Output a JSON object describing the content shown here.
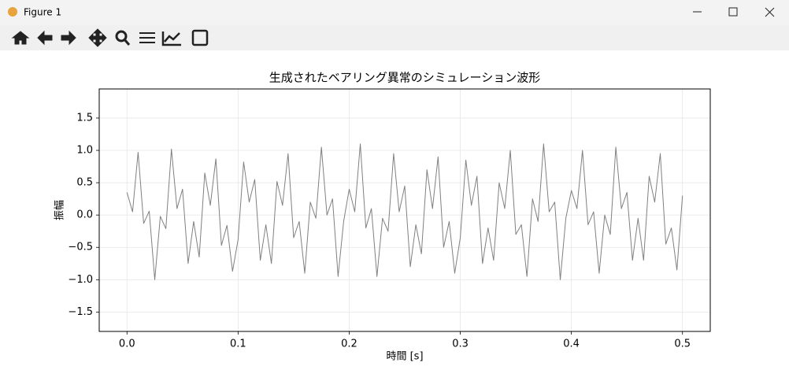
{
  "window": {
    "title": "Figure 1"
  },
  "chart_data": {
    "type": "line",
    "title": "生成されたベアリング異常のシミュレーション波形",
    "xlabel": "時間 [s]",
    "ylabel": "振幅",
    "color": "#808080",
    "grid": true,
    "xlim": [
      -0.025,
      0.525
    ],
    "ylim": [
      -1.8,
      1.95
    ],
    "xticks": [
      {
        "value": 0,
        "label": "0.0"
      },
      0.1,
      0.2,
      0.3,
      0.4,
      0.5
    ],
    "yticks": [
      {
        "value": -1.5,
        "label": "−1.5"
      },
      {
        "value": -1,
        "label": "−1.0"
      },
      {
        "value": -0.5,
        "label": "−0.5"
      },
      {
        "value": 0,
        "label": "0.0"
      },
      0.5,
      {
        "value": 1,
        "label": "1.0"
      },
      1.5
    ],
    "x": [
      0,
      0.005,
      0.01,
      0.015,
      0.02,
      0.025,
      0.03,
      0.035,
      0.04,
      0.045,
      0.05,
      0.055,
      0.06,
      0.065,
      0.07,
      0.075,
      0.08,
      0.085,
      0.09,
      0.095,
      0.1,
      0.105,
      0.11,
      0.115,
      0.12,
      0.125,
      0.13,
      0.135,
      0.14,
      0.145,
      0.15,
      0.155,
      0.16,
      0.165,
      0.17,
      0.175,
      0.18,
      0.185,
      0.19,
      0.195,
      0.2,
      0.205,
      0.21,
      0.215,
      0.22,
      0.225,
      0.23,
      0.235,
      0.24,
      0.245,
      0.25,
      0.255,
      0.26,
      0.265,
      0.27,
      0.275,
      0.28,
      0.285,
      0.29,
      0.295,
      0.3,
      0.305,
      0.31,
      0.315,
      0.32,
      0.325,
      0.33,
      0.335,
      0.34,
      0.345,
      0.35,
      0.355,
      0.36,
      0.365,
      0.37,
      0.375,
      0.38,
      0.385,
      0.39,
      0.395,
      0.4,
      0.405,
      0.41,
      0.415,
      0.42,
      0.425,
      0.43,
      0.435,
      0.44,
      0.445,
      0.45,
      0.455,
      0.46,
      0.465,
      0.47,
      0.475,
      0.48,
      0.485,
      0.49,
      0.495,
      0.5
    ],
    "values": [
      0.35,
      0.05,
      0.97,
      -0.13,
      0.06,
      -1.0,
      -0.02,
      -0.21,
      1.02,
      0.1,
      0.4,
      -0.75,
      -0.1,
      -0.65,
      0.65,
      0.15,
      0.87,
      -0.47,
      -0.16,
      -0.87,
      -0.38,
      0.82,
      0.2,
      0.55,
      -0.7,
      -0.15,
      -0.75,
      0.52,
      0.15,
      0.95,
      -0.35,
      -0.1,
      -0.9,
      0.2,
      -0.05,
      1.05,
      0.0,
      0.25,
      -0.95,
      -0.1,
      0.4,
      0.05,
      1.1,
      -0.2,
      0.1,
      -0.95,
      -0.05,
      -0.25,
      0.95,
      0.05,
      0.45,
      -0.8,
      -0.15,
      -0.6,
      0.7,
      0.1,
      0.9,
      -0.5,
      -0.1,
      -0.9,
      -0.35,
      0.85,
      0.15,
      0.6,
      -0.75,
      -0.2,
      -0.7,
      0.5,
      0.1,
      1.0,
      -0.3,
      -0.15,
      -0.95,
      0.25,
      -0.1,
      1.1,
      0.05,
      0.2,
      -1.0,
      -0.05,
      0.38,
      0.1,
      1.0,
      -0.15,
      0.05,
      -0.9,
      0.0,
      -0.3,
      1.05,
      0.1,
      0.35,
      -0.7,
      -0.05,
      -0.7,
      0.6,
      0.2,
      0.95,
      -0.45,
      -0.2,
      -0.85,
      0.3
    ]
  }
}
